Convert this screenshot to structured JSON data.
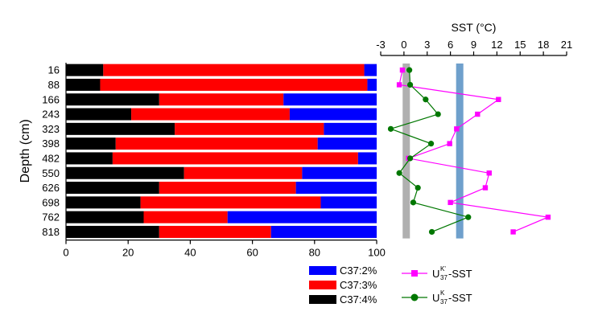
{
  "chart_data": [
    {
      "type": "bar",
      "stacked": true,
      "orientation": "horizontal",
      "ylabel": "Depth (cm)",
      "xlim": [
        0,
        100
      ],
      "xticks": [
        0,
        20,
        40,
        60,
        80,
        100
      ],
      "categories": [
        "16",
        "88",
        "166",
        "243",
        "323",
        "398",
        "482",
        "550",
        "626",
        "698",
        "762",
        "818"
      ],
      "series": [
        {
          "name": "C37:4%",
          "color": "#000000",
          "values": [
            12,
            11,
            30,
            21,
            35,
            16,
            15,
            38,
            30,
            24,
            25,
            30
          ]
        },
        {
          "name": "C37:3%",
          "color": "#ff0000",
          "values": [
            84,
            86,
            40,
            51,
            48,
            65,
            79,
            38,
            44,
            58,
            27,
            36
          ]
        },
        {
          "name": "C37:2%",
          "color": "#0000ff",
          "values": [
            4,
            3,
            30,
            28,
            17,
            19,
            6,
            24,
            26,
            18,
            48,
            34
          ]
        }
      ],
      "legend": [
        "C37:2%",
        "C37:3%",
        "C37:4%"
      ],
      "legend_position": "bottom"
    },
    {
      "type": "line",
      "title": "SST (°C)",
      "xlim": [
        -3,
        21
      ],
      "xticks": [
        -3,
        0,
        3,
        6,
        9,
        12,
        15,
        18,
        21
      ],
      "axis_position": "top",
      "categories": [
        "16",
        "88",
        "166",
        "243",
        "323",
        "398",
        "482",
        "550",
        "626",
        "698",
        "762",
        "818"
      ],
      "bands": [
        {
          "x": 0.3,
          "color": "#b0b0b0"
        },
        {
          "x": 7.2,
          "color": "#6fa0cc"
        }
      ],
      "series": [
        {
          "name_parts": [
            "U",
            "K'",
            "37",
            "-SST"
          ],
          "color": "#ff00ff",
          "marker": "square",
          "values": [
            -0.2,
            -0.6,
            12.2,
            9.5,
            6.8,
            5.9,
            0.6,
            11.0,
            10.5,
            6.0,
            18.6,
            14.1
          ]
        },
        {
          "name_parts": [
            "U",
            "K",
            "37",
            "-SST"
          ],
          "color": "#007700",
          "marker": "circle",
          "values": [
            0.7,
            0.8,
            2.8,
            4.4,
            -1.7,
            3.5,
            0.8,
            -0.6,
            1.8,
            1.2,
            8.3,
            3.6
          ]
        }
      ],
      "legend_position": "bottom-right"
    }
  ]
}
